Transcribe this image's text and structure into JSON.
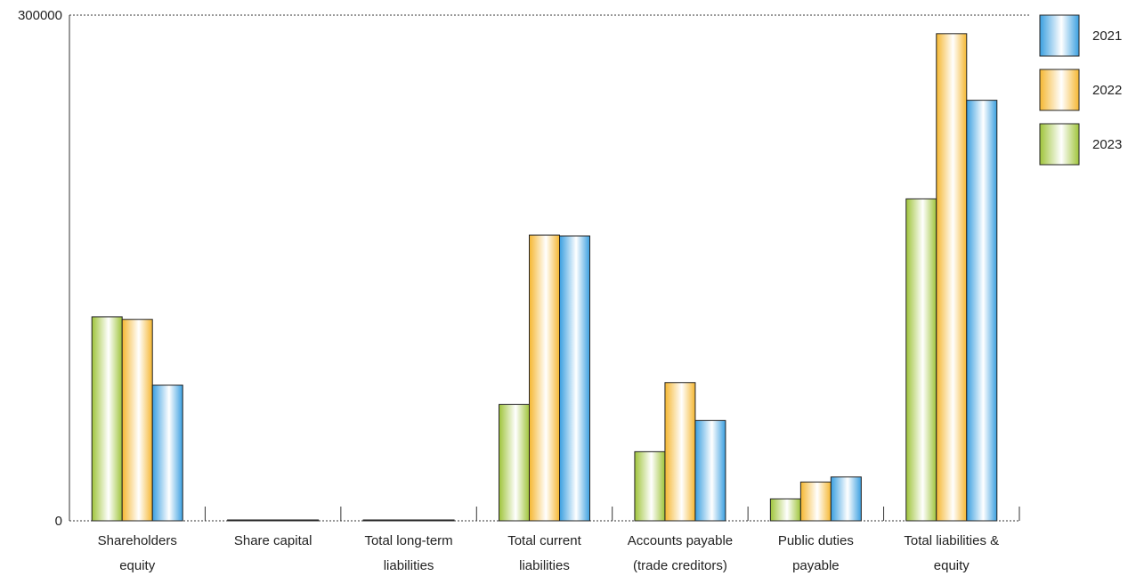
{
  "chart_data": {
    "type": "bar",
    "title": "",
    "xlabel": "",
    "ylabel": "",
    "ylim": [
      0,
      300000
    ],
    "yticks": [
      "0",
      "300000"
    ],
    "grid": false,
    "legend_position": "top-right",
    "categories": [
      [
        "Shareholders",
        "equity"
      ],
      [
        "Share capital"
      ],
      [
        "Total long-term",
        "liabilities"
      ],
      [
        "Total current",
        "liabilities"
      ],
      [
        "Accounts payable",
        "(trade creditors)"
      ],
      [
        "Public duties",
        "payable"
      ],
      [
        "Total liabilities &",
        "equity"
      ]
    ],
    "series": [
      {
        "name": "2023",
        "color": "#9fc43a",
        "values": [
          121000,
          500,
          300,
          69000,
          41000,
          13000,
          191000
        ]
      },
      {
        "name": "2022",
        "color": "#f5b731",
        "values": [
          119500,
          500,
          300,
          169500,
          82000,
          23000,
          289000
        ]
      },
      {
        "name": "2021",
        "color": "#3a9fe0",
        "values": [
          80500,
          500,
          300,
          169000,
          59500,
          26000,
          249500
        ]
      }
    ],
    "legend_order": [
      "2021",
      "2022",
      "2023"
    ]
  }
}
